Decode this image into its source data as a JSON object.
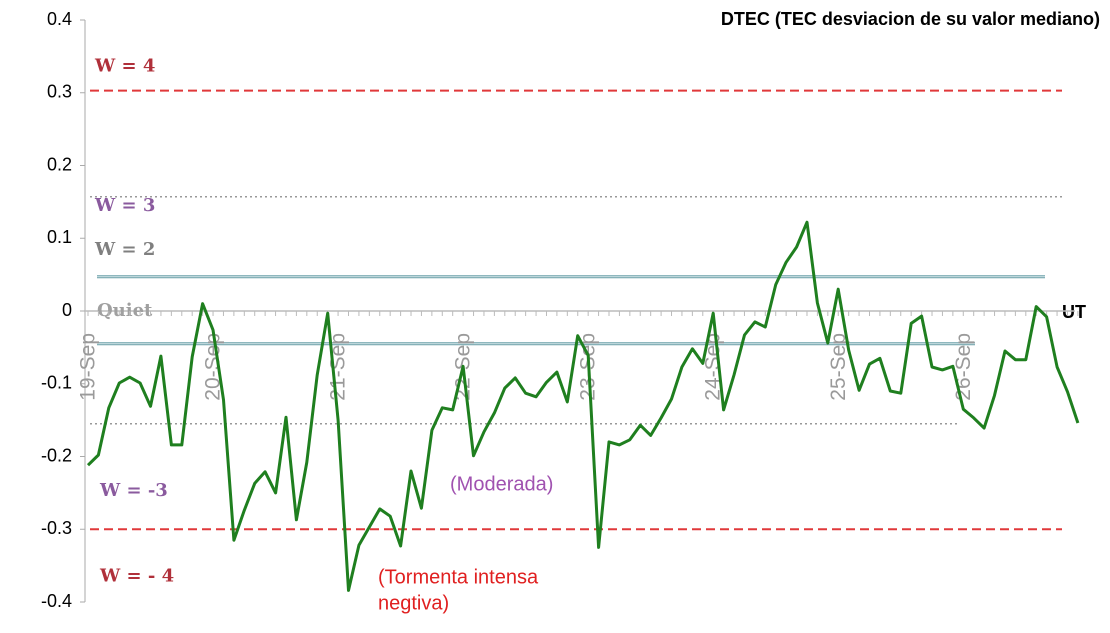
{
  "chart_data": {
    "type": "line",
    "title": "DTEC (TEC desviacion de su valor mediano)",
    "x_axis_label": "UT",
    "categories": [
      "19-Sep",
      null,
      null,
      null,
      null,
      null,
      null,
      null,
      null,
      null,
      null,
      null,
      "20-Sep",
      null,
      null,
      null,
      null,
      null,
      null,
      null,
      null,
      null,
      null,
      null,
      "21-Sep",
      null,
      null,
      null,
      null,
      null,
      null,
      null,
      null,
      null,
      null,
      null,
      "22-Sep",
      null,
      null,
      null,
      null,
      null,
      null,
      null,
      null,
      null,
      null,
      null,
      "23-Sep",
      null,
      null,
      null,
      null,
      null,
      null,
      null,
      null,
      null,
      null,
      null,
      "24-Sep",
      null,
      null,
      null,
      null,
      null,
      null,
      null,
      null,
      null,
      null,
      null,
      "25-Sep",
      null,
      null,
      null,
      null,
      null,
      null,
      null,
      null,
      null,
      null,
      null,
      "26-Sep",
      null,
      null,
      null,
      null,
      null,
      null,
      null,
      null,
      null,
      null,
      null
    ],
    "values": [
      -0.212,
      -0.198,
      -0.133,
      -0.099,
      -0.091,
      -0.099,
      -0.131,
      -0.062,
      -0.184,
      -0.184,
      -0.063,
      0.01,
      -0.026,
      -0.122,
      -0.315,
      -0.274,
      -0.237,
      -0.221,
      -0.25,
      -0.146,
      -0.287,
      -0.208,
      -0.088,
      -0.003,
      -0.15,
      -0.384,
      -0.322,
      -0.297,
      -0.272,
      -0.282,
      -0.323,
      -0.22,
      -0.271,
      -0.164,
      -0.133,
      -0.136,
      -0.076,
      -0.199,
      -0.166,
      -0.14,
      -0.106,
      -0.092,
      -0.113,
      -0.118,
      -0.098,
      -0.084,
      -0.125,
      -0.034,
      -0.061,
      -0.325,
      -0.18,
      -0.184,
      -0.177,
      -0.157,
      -0.171,
      -0.147,
      -0.121,
      -0.077,
      -0.052,
      -0.072,
      -0.003,
      -0.136,
      -0.088,
      -0.033,
      -0.015,
      -0.022,
      0.036,
      0.067,
      0.088,
      0.122,
      0.011,
      -0.044,
      0.03,
      -0.054,
      -0.109,
      -0.073,
      -0.065,
      -0.11,
      -0.113,
      -0.017,
      -0.007,
      -0.077,
      -0.081,
      -0.076,
      -0.135,
      -0.147,
      -0.161,
      -0.116,
      -0.055,
      -0.067,
      -0.067,
      0.006,
      -0.008,
      -0.077,
      -0.111,
      -0.154
    ],
    "color": "#1f7f1f",
    "ylim": [
      -0.4,
      0.4
    ],
    "yticks": [
      -0.4,
      -0.3,
      -0.2,
      -0.1,
      0,
      0.1,
      0.2,
      0.3,
      0.4
    ],
    "reference_lines": [
      {
        "value": 0.303,
        "label": "W = 4",
        "color": "#e0383a",
        "label_color": "#b0303a",
        "style": "dashed"
      },
      {
        "value": 0.157,
        "label": "W = 3",
        "color": "#999999",
        "label_color": "#8a5a9e",
        "style": "dotted"
      },
      {
        "value": 0.047,
        "label": "W = 2",
        "color": "#6a9fa8",
        "label_color": "#7f7f7f",
        "style": "double"
      },
      {
        "value": 0,
        "label": "Quiet",
        "color": "#bbbbbb",
        "label_color": "#a0a0a0",
        "style": "axis"
      },
      {
        "value": -0.045,
        "color": "#6a9fa8",
        "style": "double"
      },
      {
        "value": -0.155,
        "label": "W = -3",
        "color": "#999999",
        "label_color": "#8a5a9e",
        "style": "dotted"
      },
      {
        "value": -0.3,
        "label": "W = - 4",
        "color": "#e0383a",
        "label_color": "#b0303a",
        "style": "dashed"
      }
    ],
    "annotations": [
      {
        "lines": [
          "(Moderada)"
        ],
        "color": "#a052b0"
      },
      {
        "lines": [
          "(Tormenta intensa",
          "negtiva)"
        ],
        "color": "#e02020"
      }
    ]
  }
}
